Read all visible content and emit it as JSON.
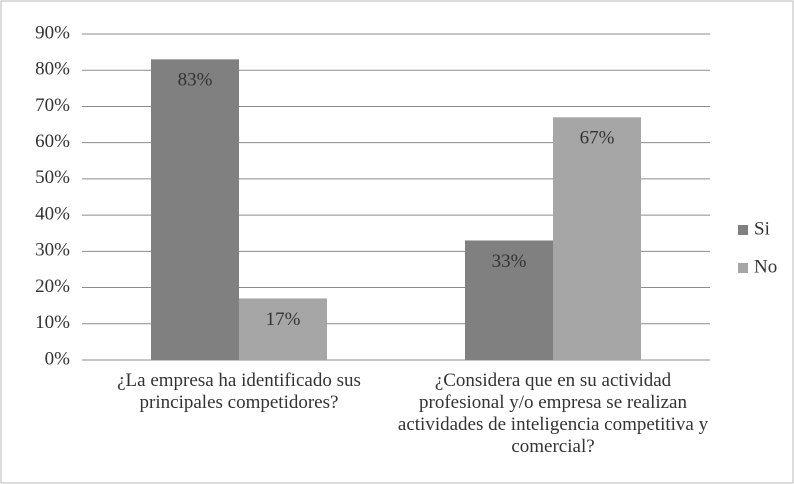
{
  "chart_data": {
    "type": "bar",
    "categories": [
      "¿La empresa ha identificado sus principales competidores?",
      "¿Considera que en su actividad profesional y/o empresa se realizan actividades de inteligencia competitiva y comercial?"
    ],
    "series": [
      {
        "name": "Si",
        "color": "#808080",
        "values": [
          83,
          33
        ],
        "value_labels": [
          "83%",
          "33%"
        ]
      },
      {
        "name": "No",
        "color": "#a6a6a6",
        "values": [
          17,
          67
        ],
        "value_labels": [
          "17%",
          "67%"
        ]
      }
    ],
    "ylim": [
      0,
      90
    ],
    "yticks": [
      {
        "value": 0,
        "label": "0%"
      },
      {
        "value": 10,
        "label": "10%"
      },
      {
        "value": 20,
        "label": "20%"
      },
      {
        "value": 30,
        "label": "30%"
      },
      {
        "value": 40,
        "label": "40%"
      },
      {
        "value": 50,
        "label": "50%"
      },
      {
        "value": 60,
        "label": "60%"
      },
      {
        "value": 70,
        "label": "70%"
      },
      {
        "value": 80,
        "label": "80%"
      },
      {
        "value": 90,
        "label": "90%"
      }
    ],
    "grid": true,
    "legend": "right"
  }
}
